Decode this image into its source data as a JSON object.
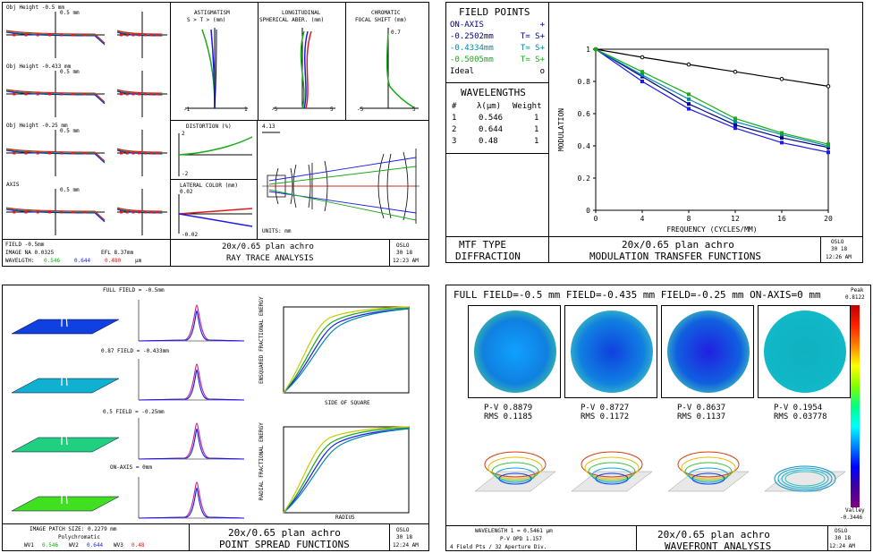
{
  "colors": {
    "green": "#1aaa1a",
    "blue": "#1a1aee",
    "red": "#e01a1a",
    "black": "#000000",
    "navy": "#000080"
  },
  "ray_trace": {
    "obj_heights": [
      "Obj Height -0.5 mm",
      "Obj Height -0.433 mm",
      "Obj Height -0.25 mm",
      "AXIS"
    ],
    "scale_label": "0.5 mm",
    "astig_title": "ASTIGMATISM",
    "astig_sub": "S > T > (mm)",
    "long_title": "LONGITUDINAL",
    "long_sub": "SPHERICAL ABER. (mm)",
    "chrom_title": "CHROMATIC",
    "chrom_sub": "FOCAL SHIFT (mm)",
    "astig_axis": [
      "-1",
      "1"
    ],
    "long_axis": [
      "-5",
      "5"
    ],
    "chrom_axis": [
      "-5",
      "5"
    ],
    "chrom_top": "0.7",
    "distortion_title": "DISTORTION (%)",
    "distortion_axis": [
      "2",
      "-2"
    ],
    "lateral_title": "LATERAL COLOR (mm)",
    "lateral_axis": [
      "0.02",
      "-0.02"
    ],
    "scale_bar": "4.13",
    "units": "UNITS: mm",
    "footer_left": [
      "FIELD -0.5mm",
      "IMAGE NA  0.0325",
      "WAVELGTH:"
    ],
    "efl": "EFL  8.37mm",
    "wl": [
      "0.546",
      "0.644",
      "0.480"
    ],
    "wl_unit": "µm",
    "title1": "20x/0.65 plan achro",
    "title2": "RAY TRACE ANALYSIS",
    "oslo": [
      "OSLO",
      "30  18",
      "12:23 AM"
    ]
  },
  "mtf": {
    "field_points_title": "FIELD POINTS",
    "field_points": [
      {
        "label": "ON-AXIS",
        "mark": "+",
        "color": "#000080"
      },
      {
        "label": "-0.2502mm",
        "mark": "T= S+",
        "color": "#000080"
      },
      {
        "label": "-0.4334mm",
        "mark": "T= S+",
        "color": "#0088aa"
      },
      {
        "label": "-0.5005mm",
        "mark": "T= S+",
        "color": "#1aaa1a"
      },
      {
        "label": "Ideal",
        "mark": "o",
        "color": "#000000"
      }
    ],
    "wavelengths_title": "WAVELENGTHS",
    "wl_header": [
      "#",
      "λ(µm)",
      "Weight"
    ],
    "wl_rows": [
      [
        "1",
        "0.546",
        "1"
      ],
      [
        "2",
        "0.644",
        "1"
      ],
      [
        "3",
        "0.48",
        "1"
      ]
    ],
    "footer_left": [
      "MTF TYPE",
      "DIFFRACTION"
    ],
    "title1": "20x/0.65 plan achro",
    "title2": "MODULATION TRANSFER FUNCTIONS",
    "oslo": [
      "OSLO",
      "30  18",
      "12:26 AM"
    ]
  },
  "psf": {
    "rows": [
      "FULL FIELD = -0.5mm",
      "0.87 FIELD = -0.433mm",
      "0.5 FIELD = -0.25mm",
      "ON-AXIS = 0mm"
    ],
    "ensquared_label": "ENSQUARED FRACTIONAL ENERGY",
    "side_label": "SIDE OF SQUARE",
    "radial_label": "RADIAL FRACTIONAL ENERGY",
    "radius_label": "RADIUS",
    "footer_left": [
      "IMAGE PATCH SIZE: 0.2279 mm",
      "Polychromatic"
    ],
    "wv": [
      "WV1",
      "0.546",
      "WV2",
      "0.644",
      "WV3",
      "0.48"
    ],
    "title1": "20x/0.65 plan achro",
    "title2": "POINT SPREAD FUNCTIONS",
    "oslo": [
      "OSLO",
      "30  18",
      "12:24 AM"
    ]
  },
  "wavefront": {
    "header": "FULL FIELD=-0.5 mm FIELD=-0.435 mm FIELD=-0.25 mm ON-AXIS=0 mm",
    "peak_label": "Peak",
    "peak_value": "0.8122",
    "valley_label": "Valley",
    "valley_value": "-0.3446",
    "maps": [
      {
        "pv": "P-V 0.8879",
        "rms": "RMS 0.1185"
      },
      {
        "pv": "P-V 0.8727",
        "rms": "RMS 0.1172"
      },
      {
        "pv": "P-V 0.8637",
        "rms": "RMS 0.1137"
      },
      {
        "pv": "P-V 0.1954",
        "rms": "RMS 0.03778"
      }
    ],
    "footer_left": [
      "WAVELENGTH 1 = 0.5461 µm",
      "P-V OPD 1.157",
      "4 Field Pts / 32 Aperture Div."
    ],
    "title1": "20x/0.65 plan achro",
    "title2": "WAVEFRONT ANALYSIS",
    "oslo": [
      "OSLO",
      "30  18",
      "12:24 AM"
    ]
  },
  "chart_data": [
    {
      "type": "line",
      "title": "",
      "xlabel": "FREQUENCY (CYCLES/MM)",
      "ylabel": "MODULATION",
      "xlim": [
        0,
        20
      ],
      "ylim": [
        0,
        1
      ],
      "xticks": [
        0,
        4,
        8,
        12,
        16,
        20
      ],
      "yticks": [
        0,
        0.2,
        0.4,
        0.6,
        0.8,
        1
      ],
      "x": [
        0,
        4,
        8,
        12,
        16,
        20
      ],
      "series": [
        {
          "name": "Ideal",
          "color": "#000000",
          "values": [
            1,
            0.95,
            0.905,
            0.86,
            0.815,
            0.77
          ]
        },
        {
          "name": "ON-AXIS",
          "color": "#000080",
          "values": [
            1,
            0.83,
            0.66,
            0.53,
            0.45,
            0.39
          ]
        },
        {
          "name": "-0.2502mm",
          "color": "#1a1aee",
          "values": [
            1,
            0.8,
            0.63,
            0.51,
            0.42,
            0.36
          ]
        },
        {
          "name": "-0.4334mm",
          "color": "#0088aa",
          "values": [
            1,
            0.84,
            0.69,
            0.55,
            0.47,
            0.4
          ]
        },
        {
          "name": "-0.5005mm",
          "color": "#1aaa1a",
          "values": [
            1,
            0.86,
            0.72,
            0.57,
            0.48,
            0.41
          ]
        }
      ]
    }
  ]
}
